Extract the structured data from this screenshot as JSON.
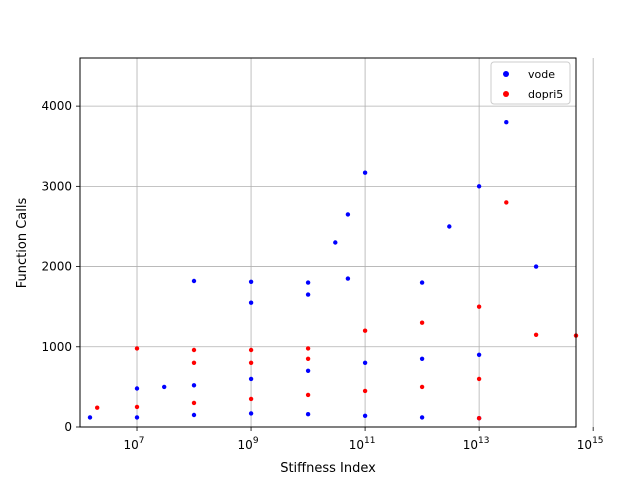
{
  "chart_data": {
    "type": "scatter",
    "title": "",
    "xlabel": "Stiffness Index",
    "ylabel": "Function Calls",
    "xscale": "log",
    "xlim": [
      1000000,
      500000000000000
    ],
    "ylim": [
      0,
      4600
    ],
    "grid": true,
    "legend_position": "top-right",
    "x_ticks": [
      {
        "value": 10000000,
        "base": "10",
        "exp": "7"
      },
      {
        "value": 1000000000,
        "base": "10",
        "exp": "9"
      },
      {
        "value": 100000000000,
        "base": "10",
        "exp": "11"
      },
      {
        "value": 10000000000000,
        "base": "10",
        "exp": "13"
      },
      {
        "value": 1000000000000000,
        "base": "10",
        "exp": "15"
      }
    ],
    "y_ticks": [
      0,
      1000,
      2000,
      3000,
      4000
    ],
    "series": [
      {
        "name": "vode",
        "color": "#0000ff",
        "trend_points": [
          {
            "x": 1500000.0,
            "y": 120
          },
          {
            "x": 10000000.0,
            "y": 120
          },
          {
            "x": 100000000.0,
            "y": 150
          },
          {
            "x": 1000000000.0,
            "y": 170
          },
          {
            "x": 10000000000.0,
            "y": 160
          },
          {
            "x": 100000000000.0,
            "y": 140
          },
          {
            "x": 1000000000000.0,
            "y": 120
          },
          {
            "x": 10000000000000.0,
            "y": 110
          },
          {
            "x": 10000000.0,
            "y": 480
          },
          {
            "x": 30000000.0,
            "y": 500
          },
          {
            "x": 100000000.0,
            "y": 520
          },
          {
            "x": 1000000000.0,
            "y": 600
          },
          {
            "x": 10000000000.0,
            "y": 700
          },
          {
            "x": 100000000000.0,
            "y": 800
          },
          {
            "x": 1000000000000.0,
            "y": 850
          },
          {
            "x": 10000000000000.0,
            "y": 900
          },
          {
            "x": 100000000.0,
            "y": 1820
          },
          {
            "x": 1000000000.0,
            "y": 1810
          },
          {
            "x": 10000000000.0,
            "y": 1800
          },
          {
            "x": 50000000000.0,
            "y": 1850
          },
          {
            "x": 1000000000.0,
            "y": 1550
          },
          {
            "x": 10000000000.0,
            "y": 1650
          },
          {
            "x": 30000000000.0,
            "y": 2300
          },
          {
            "x": 50000000000.0,
            "y": 2650
          },
          {
            "x": 100000000000.0,
            "y": 3170
          },
          {
            "x": 1000000000000.0,
            "y": 1800
          },
          {
            "x": 3000000000000.0,
            "y": 2500
          },
          {
            "x": 10000000000000.0,
            "y": 3000
          },
          {
            "x": 30000000000000.0,
            "y": 3800
          },
          {
            "x": 100000000000000.0,
            "y": 2000
          }
        ]
      },
      {
        "name": "dopri5",
        "color": "#ff0000",
        "trend_points": [
          {
            "x": 2000000.0,
            "y": 240
          },
          {
            "x": 10000000.0,
            "y": 250
          },
          {
            "x": 100000000.0,
            "y": 300
          },
          {
            "x": 1000000000.0,
            "y": 350
          },
          {
            "x": 10000000000.0,
            "y": 400
          },
          {
            "x": 100000000000.0,
            "y": 450
          },
          {
            "x": 1000000000000.0,
            "y": 500
          },
          {
            "x": 10000000000000.0,
            "y": 600
          },
          {
            "x": 10000000.0,
            "y": 980
          },
          {
            "x": 100000000.0,
            "y": 960
          },
          {
            "x": 1000000000.0,
            "y": 960
          },
          {
            "x": 10000000000.0,
            "y": 980
          },
          {
            "x": 100000000000.0,
            "y": 1200
          },
          {
            "x": 1000000000000.0,
            "y": 1300
          },
          {
            "x": 10000000000000.0,
            "y": 1500
          },
          {
            "x": 30000000000000.0,
            "y": 2800
          },
          {
            "x": 100000000.0,
            "y": 800
          },
          {
            "x": 1000000000.0,
            "y": 800
          },
          {
            "x": 10000000000.0,
            "y": 850
          },
          {
            "x": 10000000000000.0,
            "y": 110
          },
          {
            "x": 100000000000000.0,
            "y": 1150
          },
          {
            "x": 500000000000000.0,
            "y": 1140
          }
        ]
      }
    ]
  }
}
